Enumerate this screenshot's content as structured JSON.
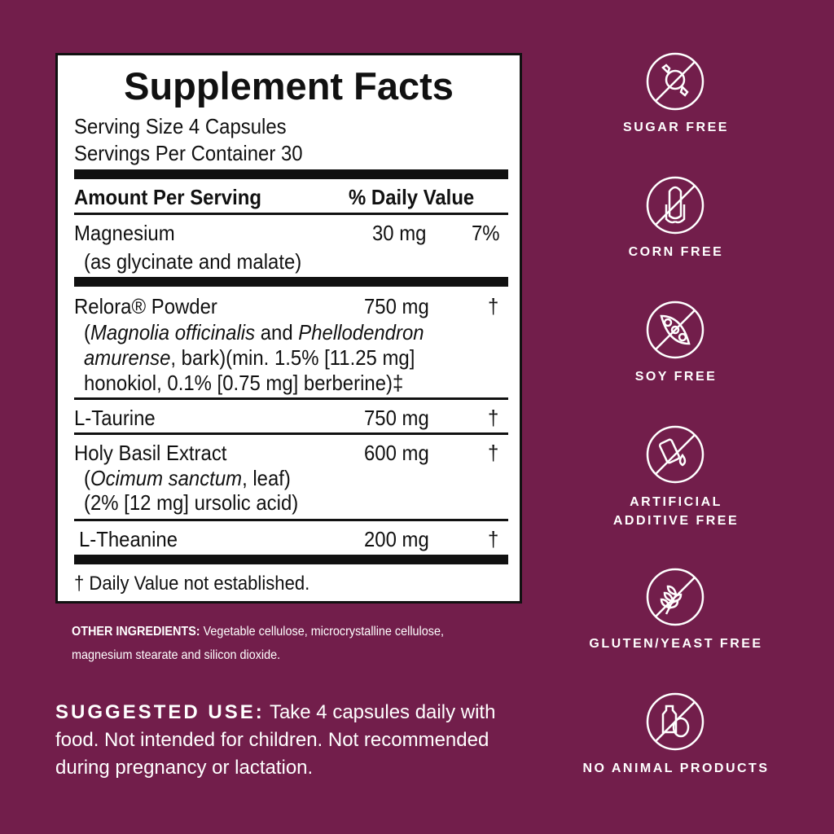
{
  "label": {
    "title": "Supplement Facts",
    "serving_size": "Serving Size 4 Capsules",
    "servings_per_container": "Servings Per Container 30",
    "header_amount": "Amount Per Serving",
    "header_dv": "% Daily Value",
    "rows": [
      {
        "name": "Magnesium",
        "sub": [
          "(as glycinate and malate)"
        ],
        "amount": "30 mg",
        "dv": "7%"
      },
      {
        "name": "Relora® Powder",
        "sub_italic_1": "Magnolia officinalis",
        "sub_and": " and ",
        "sub_italic_2": "Phellodendron",
        "sub_italic_3": "amurense",
        "sub_2": ", bark)(min. 1.5% [11.25 mg]",
        "sub_3": "honokiol, 0.1% [0.75 mg] berberine)‡",
        "amount": "750 mg",
        "dv": "†"
      },
      {
        "name": "L-Taurine",
        "amount": "750 mg",
        "dv": "†"
      },
      {
        "name": "Holy Basil Extract",
        "sub_italic": "Ocimum sanctum",
        "sub_1": ", leaf)",
        "sub_2": "(2% [12 mg] ursolic acid)",
        "amount": "600 mg",
        "dv": "†"
      },
      {
        "name": "L-Theanine",
        "amount": "200 mg",
        "dv": "†"
      }
    ],
    "footnote": "† Daily Value not established."
  },
  "other_ingredients": {
    "label": "OTHER INGREDIENTS:",
    "text": " Vegetable cellulose, microcrystalline cellulose, magnesium stearate and silicon dioxide."
  },
  "suggested_use": {
    "label": "SUGGESTED USE:",
    "text": " Take 4 capsules daily with food. Not intended for children. Not recommended during pregnancy or lactation."
  },
  "badges": [
    {
      "icon": "candy-crossed-icon",
      "label": "SUGAR FREE"
    },
    {
      "icon": "corn-crossed-icon",
      "label": "CORN FREE"
    },
    {
      "icon": "soybean-crossed-icon",
      "label": "SOY FREE"
    },
    {
      "icon": "additive-crossed-icon",
      "label": "ARTIFICIAL ADDITIVE FREE"
    },
    {
      "icon": "wheat-crossed-icon",
      "label": "GLUTEN/YEAST FREE"
    },
    {
      "icon": "milk-egg-crossed-icon",
      "label": "NO ANIMAL PRODUCTS"
    }
  ],
  "colors": {
    "background": "#721e4b",
    "label_bg": "#ffffff",
    "text": "#111111"
  }
}
